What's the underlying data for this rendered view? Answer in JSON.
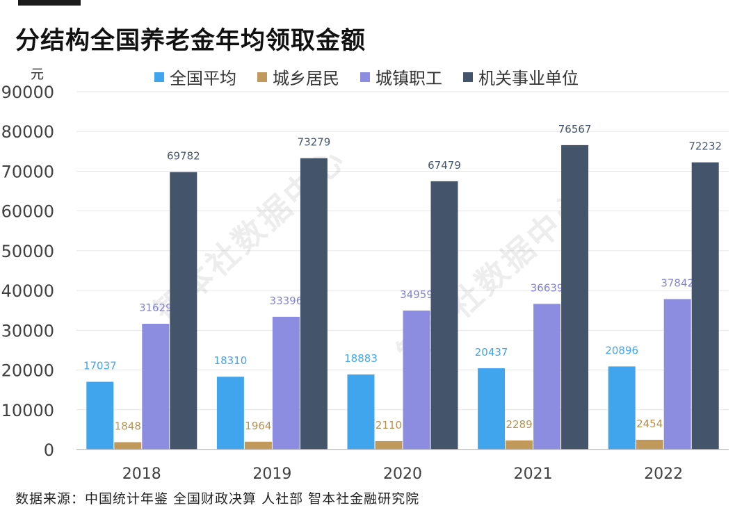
{
  "title": "分结构全国养老金年均领取金额",
  "source_note": "数据来源：中国统计年鉴 全国财政决算 人社部 智本社金融研究院",
  "watermark": "智本社数据中心",
  "chart_data": {
    "type": "bar",
    "ylabel": "元",
    "ylim": [
      0,
      90000
    ],
    "y_ticks": [
      0,
      10000,
      20000,
      30000,
      40000,
      50000,
      60000,
      70000,
      80000,
      90000
    ],
    "legend_position": "top",
    "grid": true,
    "categories": [
      "2018",
      "2019",
      "2020",
      "2021",
      "2022"
    ],
    "series": [
      {
        "name": "全国平均",
        "color": "#41a5ee",
        "label_color": "#41a5ee",
        "values": [
          17037,
          18310,
          18883,
          20437,
          20896
        ]
      },
      {
        "name": "城乡居民",
        "color": "#c19a5b",
        "label_color": "#b8914f",
        "values": [
          1848,
          1964,
          2110,
          2289,
          2454
        ]
      },
      {
        "name": "城镇职工",
        "color": "#8c8ce0",
        "label_color": "#8282dc",
        "values": [
          31629,
          33396,
          34959,
          36639,
          37842
        ]
      },
      {
        "name": "机关事业单位",
        "color": "#44546a",
        "label_color": "#44546a",
        "values": [
          69782,
          73279,
          67479,
          76567,
          72232
        ]
      }
    ]
  }
}
